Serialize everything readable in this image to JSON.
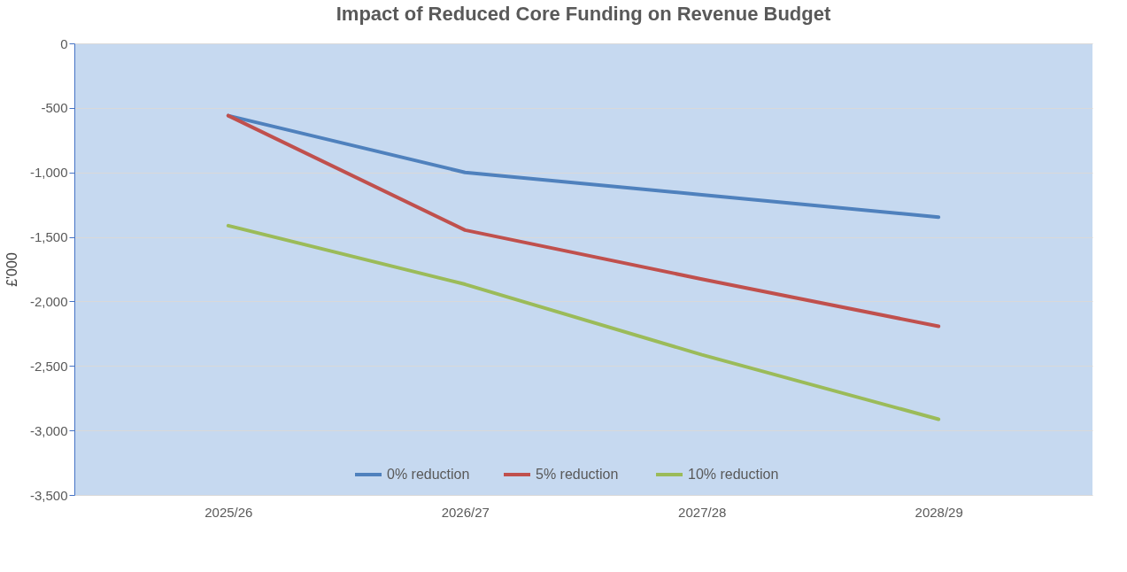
{
  "chart_data": {
    "type": "line",
    "title": "Impact of Reduced Core Funding on Revenue Budget",
    "ylabel": "£'000",
    "categories": [
      "2025/26",
      "2026/27",
      "2027/28",
      "2028/29"
    ],
    "series": [
      {
        "name": "0% reduction",
        "color": "#4f81bd",
        "values": [
          -560,
          -1000,
          -1173,
          -1347
        ]
      },
      {
        "name": "5%  reduction",
        "color": "#c0504d",
        "values": [
          -560,
          -1447,
          -1827,
          -2193
        ]
      },
      {
        "name": "10%  reduction",
        "color": "#9bbb59",
        "values": [
          -1413,
          -1867,
          -2413,
          -2913
        ]
      }
    ],
    "ylim": [
      -3500,
      0
    ],
    "yticks": [
      {
        "value": -3500,
        "label": "-3,500"
      },
      {
        "value": -3000,
        "label": "-3,000"
      },
      {
        "value": -2500,
        "label": "-2,500"
      },
      {
        "value": -2000,
        "label": "-2,000"
      },
      {
        "value": -1500,
        "label": "-1,500"
      },
      {
        "value": -1000,
        "label": "-1,000"
      },
      -500,
      0
    ],
    "grid": "y",
    "legend": "bottom",
    "marker": "none",
    "line_style": "solid"
  }
}
